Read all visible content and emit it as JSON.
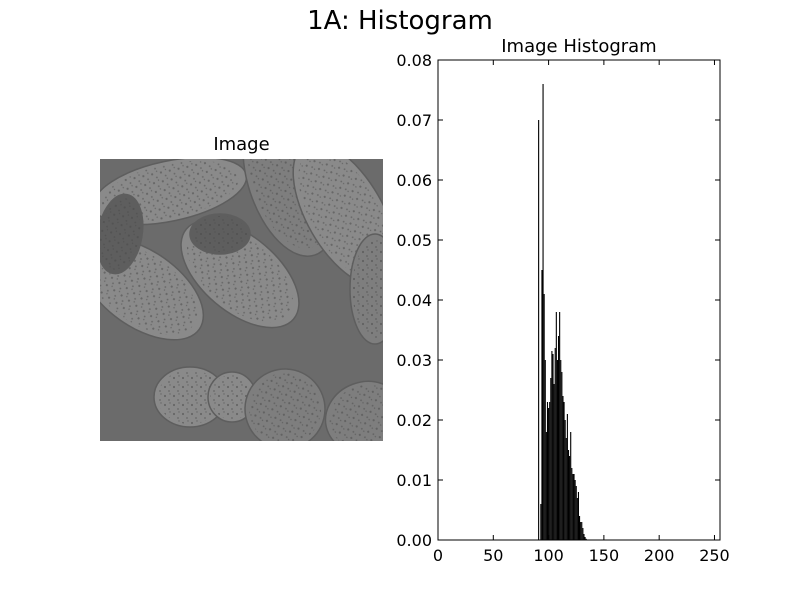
{
  "figure": {
    "title": "1A: Histogram"
  },
  "image_panel": {
    "title": "Image",
    "colors": {
      "background": "#6b6b6b",
      "grain_light": "#8a8a8a",
      "grain_mid": "#7e7e7e",
      "grain_dark": "#5e5e5e",
      "speckle": "#4a4a4a"
    }
  },
  "chart_data": {
    "type": "bar",
    "title": "Image Histogram",
    "xlabel": "",
    "ylabel": "",
    "xlim": [
      0,
      255
    ],
    "ylim": [
      0,
      0.08
    ],
    "grid": false,
    "x_ticks": [
      0,
      50,
      100,
      150,
      200,
      250
    ],
    "x_tick_labels": [
      "0",
      "50",
      "100",
      "150",
      "200",
      "250"
    ],
    "y_ticks": [
      0.0,
      0.01,
      0.02,
      0.03,
      0.04,
      0.05,
      0.06,
      0.07,
      0.08
    ],
    "y_tick_labels": [
      "0.00",
      "0.01",
      "0.02",
      "0.03",
      "0.04",
      "0.05",
      "0.06",
      "0.07",
      "0.08"
    ],
    "bar_color": "#000000",
    "x": [
      91,
      92,
      93,
      94,
      95,
      96,
      97,
      98,
      99,
      100,
      101,
      102,
      103,
      104,
      105,
      106,
      107,
      108,
      109,
      110,
      111,
      112,
      113,
      114,
      115,
      116,
      117,
      118,
      119,
      120,
      121,
      122,
      123,
      124,
      125,
      126,
      127,
      128,
      129,
      130,
      131,
      132,
      133,
      134,
      135,
      136,
      137
    ],
    "values": [
      0.07,
      0.0,
      0.006,
      0.045,
      0.076,
      0.041,
      0.03,
      0.018,
      0.023,
      0.022,
      0.023,
      0.027,
      0.0315,
      0.031,
      0.026,
      0.032,
      0.038,
      0.03,
      0.034,
      0.038,
      0.03,
      0.028,
      0.024,
      0.023,
      0.02,
      0.017,
      0.021,
      0.015,
      0.014,
      0.018,
      0.012,
      0.011,
      0.011,
      0.01,
      0.009,
      0.007,
      0.008,
      0.004,
      0.003,
      0.003,
      0.002,
      0.001,
      0.0005,
      0.0002,
      0.0,
      0.0,
      0.0
    ]
  }
}
